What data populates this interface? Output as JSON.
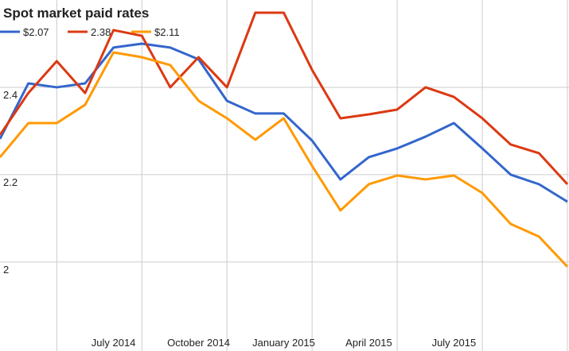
{
  "chart_data": {
    "type": "line",
    "title": "Spot market paid rates",
    "categories": [
      null,
      null,
      null,
      null,
      "July 2014",
      null,
      null,
      "October 2014",
      null,
      null,
      "January 2015",
      null,
      null,
      "April 2015",
      null,
      null,
      "July 2015",
      null,
      null,
      null,
      null
    ],
    "series": [
      {
        "name": "$2.07",
        "color": "#3366cc",
        "values": [
          2.282,
          2.409,
          2.4,
          2.409,
          2.491,
          2.5,
          2.491,
          2.464,
          2.369,
          2.34,
          2.34,
          2.278,
          2.189,
          2.24,
          2.26,
          2.287,
          2.318,
          2.26,
          2.2,
          2.178,
          2.138
        ]
      },
      {
        "name": "2.38",
        "color": "#dc3912",
        "values": [
          2.291,
          2.387,
          2.46,
          2.387,
          2.531,
          2.518,
          2.4,
          2.469,
          2.4,
          2.571,
          2.571,
          2.44,
          2.329,
          2.338,
          2.349,
          2.4,
          2.378,
          2.329,
          2.269,
          2.249,
          2.178
        ]
      },
      {
        "name": "$2.11",
        "color": "#ff9900",
        "values": [
          2.24,
          2.318,
          2.318,
          2.36,
          2.48,
          2.469,
          2.451,
          2.369,
          2.329,
          2.28,
          2.329,
          2.22,
          2.118,
          2.178,
          2.198,
          2.189,
          2.198,
          2.158,
          2.087,
          2.058,
          1.989
        ]
      }
    ],
    "ylim": [
      1.796,
      2.6
    ],
    "yticks": [
      2,
      2.2,
      2.4
    ],
    "grid": true
  }
}
